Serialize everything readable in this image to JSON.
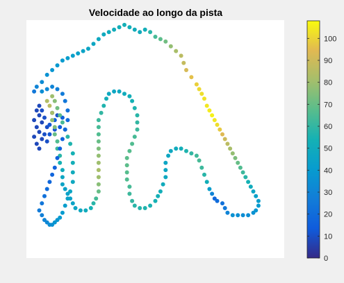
{
  "chart_data": {
    "type": "scatter",
    "title": "Velocidade ao longo da pista",
    "xlabel": "",
    "ylabel": "",
    "axes_visible": false,
    "colorbar": {
      "range": [
        0,
        108
      ],
      "ticks": [
        0,
        10,
        20,
        30,
        40,
        50,
        60,
        70,
        80,
        90,
        100
      ],
      "tick_labels": [
        "0",
        "10",
        "20",
        "30",
        "40",
        "50",
        "60",
        "70",
        "80",
        "90",
        "100"
      ],
      "colormap": "parula"
    },
    "xlim": [
      0,
      100
    ],
    "ylim": [
      0,
      100
    ],
    "legend": "none",
    "points": [
      [
        4,
        62,
        8
      ],
      [
        5,
        60,
        8
      ],
      [
        3,
        58,
        8
      ],
      [
        6,
        57,
        8
      ],
      [
        4,
        55,
        8
      ],
      [
        5,
        53,
        8
      ],
      [
        3,
        51,
        8
      ],
      [
        6,
        50,
        8
      ],
      [
        4,
        48,
        8
      ],
      [
        5,
        46,
        8
      ],
      [
        7,
        59,
        10
      ],
      [
        8,
        55,
        10
      ],
      [
        7,
        52,
        10
      ],
      [
        8,
        49,
        10
      ],
      [
        9,
        56,
        12
      ],
      [
        9,
        52,
        12
      ],
      [
        6,
        62,
        10
      ],
      [
        5,
        64,
        8
      ],
      [
        10,
        61,
        12
      ],
      [
        11,
        58,
        14
      ],
      [
        12,
        60,
        10
      ],
      [
        14,
        59,
        15
      ],
      [
        13,
        55,
        14
      ],
      [
        11,
        54,
        12
      ],
      [
        3,
        70,
        25
      ],
      [
        4,
        72,
        30
      ],
      [
        6,
        74,
        33
      ],
      [
        8,
        77,
        36
      ],
      [
        10,
        79,
        38
      ],
      [
        12,
        81,
        39
      ],
      [
        14,
        83,
        40
      ],
      [
        16,
        84,
        42
      ],
      [
        18,
        85,
        43
      ],
      [
        20,
        86,
        44
      ],
      [
        22,
        87,
        45
      ],
      [
        24,
        88,
        46
      ],
      [
        26,
        90,
        47
      ],
      [
        28,
        92,
        48
      ],
      [
        30,
        94,
        49
      ],
      [
        32,
        95,
        50
      ],
      [
        34,
        96,
        51
      ],
      [
        36,
        97,
        52
      ],
      [
        38,
        98,
        53
      ],
      [
        40,
        97,
        52
      ],
      [
        42,
        96,
        51
      ],
      [
        44,
        95,
        50
      ],
      [
        46,
        96,
        52
      ],
      [
        48,
        95,
        58
      ],
      [
        50,
        93,
        64
      ],
      [
        52,
        92,
        68
      ],
      [
        54,
        91,
        72
      ],
      [
        56,
        89,
        78
      ],
      [
        58,
        87,
        82
      ],
      [
        60,
        85,
        86
      ],
      [
        61,
        82,
        88
      ],
      [
        62,
        79,
        92
      ],
      [
        64,
        76,
        96
      ],
      [
        66,
        73,
        99
      ],
      [
        67,
        71,
        101
      ],
      [
        68,
        69,
        102
      ],
      [
        69,
        67,
        103
      ],
      [
        70,
        64,
        104
      ],
      [
        71,
        62,
        105
      ],
      [
        72,
        60,
        106
      ],
      [
        73,
        58,
        104
      ],
      [
        74,
        56,
        102
      ],
      [
        75,
        54,
        98
      ],
      [
        76,
        52,
        94
      ],
      [
        77,
        50,
        90
      ],
      [
        78,
        48,
        86
      ],
      [
        79,
        46,
        82
      ],
      [
        80,
        44,
        78
      ],
      [
        81,
        42,
        74
      ],
      [
        82,
        40,
        70
      ],
      [
        83,
        38,
        66
      ],
      [
        84,
        36,
        62
      ],
      [
        85,
        34,
        58
      ],
      [
        86,
        32,
        54
      ],
      [
        87,
        30,
        50
      ],
      [
        88,
        28,
        46
      ],
      [
        89,
        26,
        44
      ],
      [
        90,
        24,
        42
      ],
      [
        90,
        22,
        40
      ],
      [
        89,
        20,
        38
      ],
      [
        88,
        19,
        36
      ],
      [
        86,
        18,
        34
      ],
      [
        84,
        18,
        34
      ],
      [
        82,
        18,
        35
      ],
      [
        80,
        18,
        36
      ],
      [
        78,
        19,
        30
      ],
      [
        77,
        21,
        25
      ],
      [
        76,
        23,
        22
      ],
      [
        74,
        24,
        20
      ],
      [
        73,
        25,
        18
      ],
      [
        72,
        27,
        30
      ],
      [
        71,
        29,
        42
      ],
      [
        70,
        32,
        52
      ],
      [
        69,
        35,
        58
      ],
      [
        68,
        38,
        62
      ],
      [
        67,
        41,
        64
      ],
      [
        66,
        43,
        63
      ],
      [
        64,
        44,
        60
      ],
      [
        62,
        45,
        56
      ],
      [
        60,
        46,
        52
      ],
      [
        58,
        46,
        50
      ],
      [
        56,
        45,
        48
      ],
      [
        55,
        43,
        47
      ],
      [
        54,
        40,
        46
      ],
      [
        54,
        37,
        47
      ],
      [
        54,
        34,
        48
      ],
      [
        53,
        31,
        50
      ],
      [
        52,
        28,
        52
      ],
      [
        51,
        26,
        53
      ],
      [
        50,
        24,
        54
      ],
      [
        48,
        22,
        55
      ],
      [
        46,
        21,
        56
      ],
      [
        44,
        21,
        57
      ],
      [
        42,
        22,
        58
      ],
      [
        41,
        24,
        60
      ],
      [
        40,
        27,
        62
      ],
      [
        40,
        30,
        64
      ],
      [
        39,
        33,
        66
      ],
      [
        39,
        36,
        67
      ],
      [
        39,
        39,
        68
      ],
      [
        39,
        42,
        68
      ],
      [
        40,
        45,
        67
      ],
      [
        41,
        48,
        66
      ],
      [
        42,
        51,
        64
      ],
      [
        43,
        54,
        62
      ],
      [
        43,
        57,
        60
      ],
      [
        43,
        60,
        58
      ],
      [
        42,
        63,
        56
      ],
      [
        41,
        66,
        54
      ],
      [
        40,
        68,
        52
      ],
      [
        38,
        69,
        50
      ],
      [
        36,
        70,
        48
      ],
      [
        34,
        70,
        47
      ],
      [
        32,
        69,
        48
      ],
      [
        31,
        67,
        52
      ],
      [
        30,
        64,
        56
      ],
      [
        29,
        61,
        60
      ],
      [
        28,
        58,
        62
      ],
      [
        28,
        55,
        64
      ],
      [
        28,
        52,
        66
      ],
      [
        28,
        49,
        70
      ],
      [
        28,
        46,
        74
      ],
      [
        28,
        43,
        78
      ],
      [
        28,
        40,
        80
      ],
      [
        28,
        37,
        82
      ],
      [
        28,
        34,
        80
      ],
      [
        28,
        31,
        76
      ],
      [
        28,
        28,
        70
      ],
      [
        27,
        25,
        64
      ],
      [
        26,
        23,
        58
      ],
      [
        25,
        21,
        54
      ],
      [
        23,
        20,
        50
      ],
      [
        21,
        20,
        48
      ],
      [
        19,
        21,
        46
      ],
      [
        18,
        23,
        45
      ],
      [
        17,
        25,
        44
      ],
      [
        16,
        27,
        44
      ],
      [
        15,
        29,
        44
      ],
      [
        14,
        31,
        45
      ],
      [
        14,
        34,
        47
      ],
      [
        14,
        37,
        50
      ],
      [
        13,
        40,
        54
      ],
      [
        13,
        43,
        58
      ],
      [
        12,
        46,
        62
      ],
      [
        12,
        49,
        66
      ],
      [
        11,
        52,
        70
      ],
      [
        11,
        55,
        74
      ],
      [
        10,
        58,
        78
      ],
      [
        10,
        61,
        82
      ],
      [
        9,
        64,
        86
      ],
      [
        8,
        66,
        84
      ],
      [
        10,
        68,
        80
      ],
      [
        11,
        66,
        76
      ],
      [
        12,
        63,
        72
      ],
      [
        13,
        60,
        68
      ],
      [
        14,
        57,
        64
      ],
      [
        15,
        54,
        60
      ],
      [
        16,
        51,
        58
      ],
      [
        17,
        48,
        56
      ],
      [
        18,
        44,
        54
      ],
      [
        18,
        40,
        52
      ],
      [
        18,
        36,
        50
      ],
      [
        18,
        32,
        48
      ],
      [
        17,
        28,
        46
      ],
      [
        16,
        25,
        44
      ],
      [
        15,
        22,
        42
      ],
      [
        14,
        19,
        40
      ],
      [
        13,
        17,
        40
      ],
      [
        12,
        16,
        38
      ],
      [
        11,
        15,
        38
      ],
      [
        10,
        14,
        36
      ],
      [
        9,
        14,
        34
      ],
      [
        8,
        15,
        32
      ],
      [
        7,
        16,
        30
      ],
      [
        6,
        18,
        28
      ],
      [
        5,
        20,
        26
      ],
      [
        6,
        23,
        24
      ],
      [
        7,
        26,
        22
      ],
      [
        8,
        29,
        20
      ],
      [
        9,
        32,
        18
      ],
      [
        10,
        35,
        17
      ],
      [
        11,
        38,
        16
      ],
      [
        12,
        42,
        16
      ],
      [
        13,
        46,
        16
      ],
      [
        14,
        50,
        17
      ],
      [
        15,
        54,
        18
      ],
      [
        16,
        58,
        20
      ],
      [
        16,
        62,
        22
      ],
      [
        15,
        66,
        24
      ],
      [
        14,
        69,
        26
      ],
      [
        12,
        71,
        28
      ],
      [
        10,
        72,
        30
      ],
      [
        8,
        71,
        32
      ],
      [
        6,
        70,
        34
      ]
    ]
  }
}
